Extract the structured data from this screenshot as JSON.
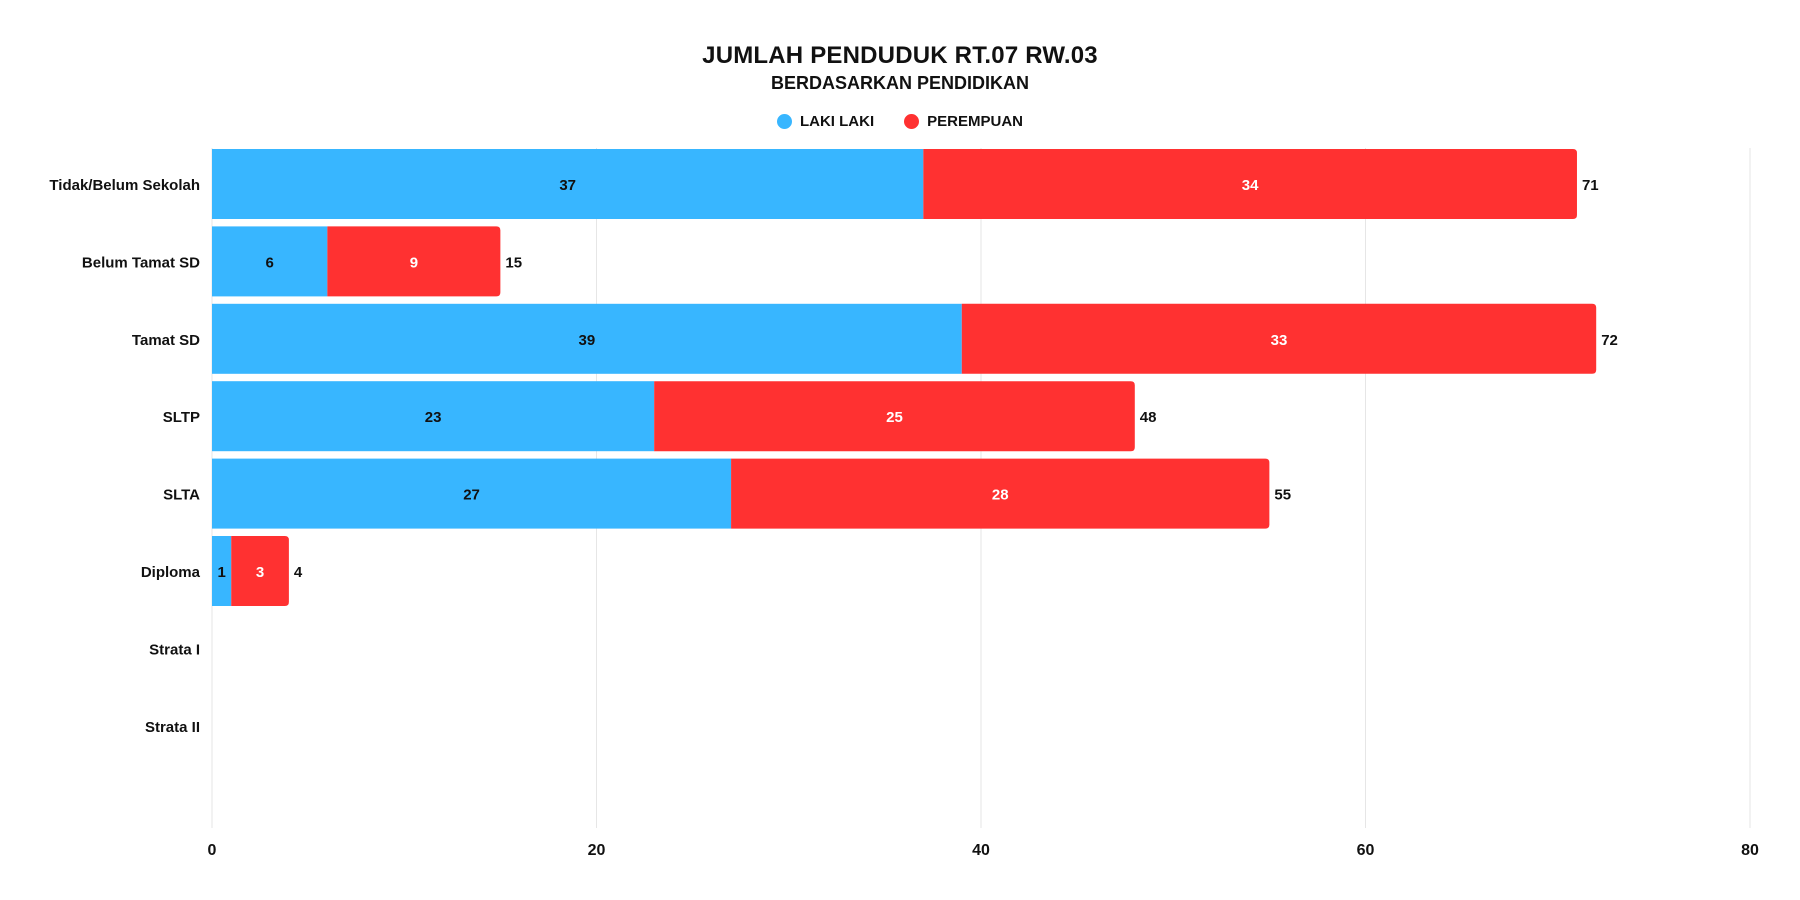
{
  "colors": {
    "laki": "#38b6ff",
    "perempuan": "#ff3131",
    "grid": "#e6e6e6",
    "text": "#111111"
  },
  "chart_data": {
    "type": "bar",
    "orientation": "horizontal",
    "stacked": true,
    "title": "JUMLAH PENDUDUK RT.07 RW.03",
    "subtitle": "BERDASARKAN PENDIDIKAN",
    "categories": [
      "Tidak/Belum Sekolah",
      "Belum Tamat SD",
      "Tamat SD",
      "SLTP",
      "SLTA",
      "Diploma",
      "Strata I",
      "Strata II"
    ],
    "series": [
      {
        "name": "LAKI LAKI",
        "values": [
          37,
          6,
          39,
          23,
          27,
          1,
          0,
          0
        ]
      },
      {
        "name": "PEREMPUAN",
        "values": [
          34,
          9,
          33,
          25,
          28,
          3,
          0,
          0
        ]
      }
    ],
    "totals": [
      71,
      15,
      72,
      48,
      55,
      4,
      null,
      null
    ],
    "xlim": [
      0,
      80
    ],
    "xticks": [
      0,
      20,
      40,
      60,
      80
    ],
    "grid": true,
    "legend": "top-center"
  }
}
